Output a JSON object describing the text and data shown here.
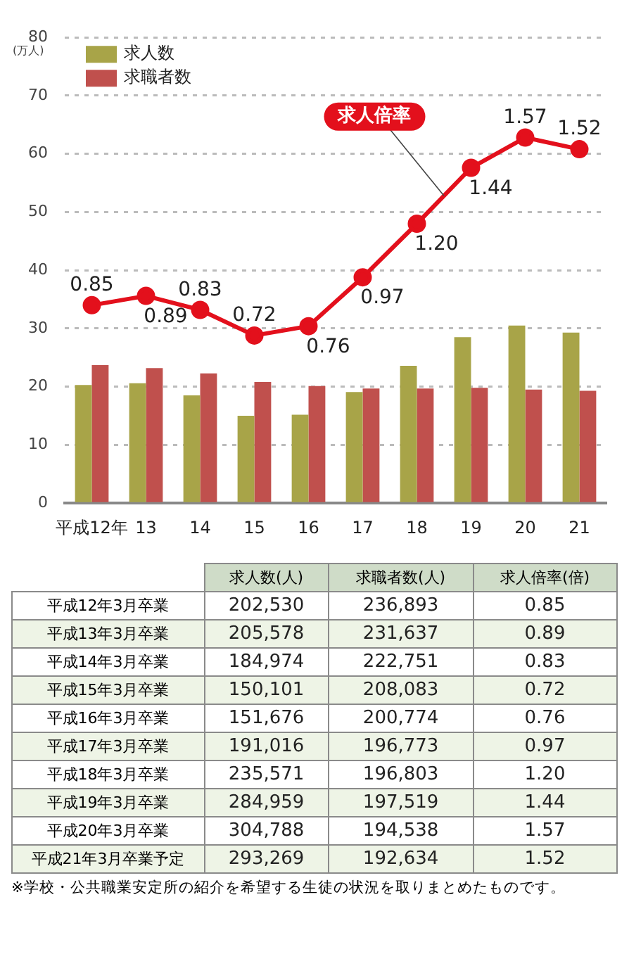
{
  "chart_data": [
    {
      "type": "bar",
      "ylabel": "(万人)",
      "categories": [
        "平成12年",
        "13",
        "14",
        "15",
        "16",
        "17",
        "18",
        "19",
        "20",
        "21"
      ],
      "series": [
        {
          "name": "求人数",
          "color": "#a8a448",
          "values": [
            20.3,
            20.6,
            18.5,
            15.0,
            15.2,
            19.1,
            23.6,
            28.5,
            30.5,
            29.3
          ]
        },
        {
          "name": "求職者数",
          "color": "#c0504d",
          "values": [
            23.7,
            23.2,
            22.3,
            20.8,
            20.1,
            19.7,
            19.7,
            19.8,
            19.5,
            19.3
          ]
        },
        {
          "name": "求人倍率",
          "type": "line",
          "axis": "y2",
          "color": "#e3101c",
          "marker": "circle",
          "values": [
            0.85,
            0.89,
            0.83,
            0.72,
            0.76,
            0.97,
            1.2,
            1.44,
            1.57,
            1.52
          ],
          "value_labels": [
            "0.85",
            "0.89",
            "0.83",
            "0.72",
            "0.76",
            "0.97",
            "1.20",
            "1.44",
            "1.57",
            "1.52"
          ]
        }
      ],
      "ylim": [
        0,
        80
      ],
      "yticks": [
        0,
        10,
        20,
        30,
        40,
        50,
        60,
        70,
        80
      ],
      "y2lim": [
        0,
        2
      ],
      "grid": "y",
      "legend": "top left"
    },
    {
      "type": "other",
      "categories": [
        "平成12年3月卒業",
        "平成13年3月卒業",
        "平成14年3月卒業",
        "平成15年3月卒業",
        "平成16年3月卒業",
        "平成17年3月卒業",
        "平成18年3月卒業",
        "平成19年3月卒業",
        "平成20年3月卒業",
        "平成21年3月卒業予定"
      ],
      "series": [
        {
          "name": "求人数(人)",
          "colors": [
            "#ffffff",
            "#eef4e6",
            "#ffffff",
            "#eef4e6",
            "#ffffff",
            "#eef4e6",
            "#ffffff",
            "#eef4e6",
            "#ffffff",
            "#eef4e6"
          ],
          "values": [
            202530,
            205578,
            184974,
            150101,
            151676,
            191016,
            235571,
            284959,
            304788,
            293269
          ],
          "value_labels": [
            "202,530",
            "205,578",
            "184,974",
            "150,101",
            "151,676",
            "191,016",
            "235,571",
            "284,959",
            "304,788",
            "293,269"
          ]
        },
        {
          "name": "求職者数(人)",
          "colors": [
            "#ffffff",
            "#eef4e6",
            "#ffffff",
            "#eef4e6",
            "#ffffff",
            "#eef4e6",
            "#ffffff",
            "#eef4e6",
            "#ffffff",
            "#eef4e6"
          ],
          "values": [
            236893,
            231637,
            222751,
            208083,
            200774,
            196773,
            196803,
            197519,
            194538,
            192634
          ],
          "value_labels": [
            "236,893",
            "231,637",
            "222,751",
            "208,083",
            "200,774",
            "196,773",
            "196,803",
            "197,519",
            "194,538",
            "192,634"
          ]
        },
        {
          "name": "求人倍率(倍)",
          "colors": [
            "#ffffff",
            "#eef4e6",
            "#ffffff",
            "#eef4e6",
            "#ffffff",
            "#eef4e6",
            "#ffffff",
            "#eef4e6",
            "#ffffff",
            "#eef4e6"
          ],
          "values": [
            0.85,
            0.89,
            0.83,
            0.72,
            0.76,
            0.97,
            1.2,
            1.44,
            1.57,
            1.52
          ],
          "value_labels": [
            "0.85",
            "0.89",
            "0.83",
            "0.72",
            "0.76",
            "0.97",
            "1.20",
            "1.44",
            "1.57",
            "1.52"
          ]
        }
      ],
      "annotations": [
        "※学校・公共職業安定所の紹介を希望する生徒の状況を取りまとめたものです。"
      ]
    }
  ]
}
